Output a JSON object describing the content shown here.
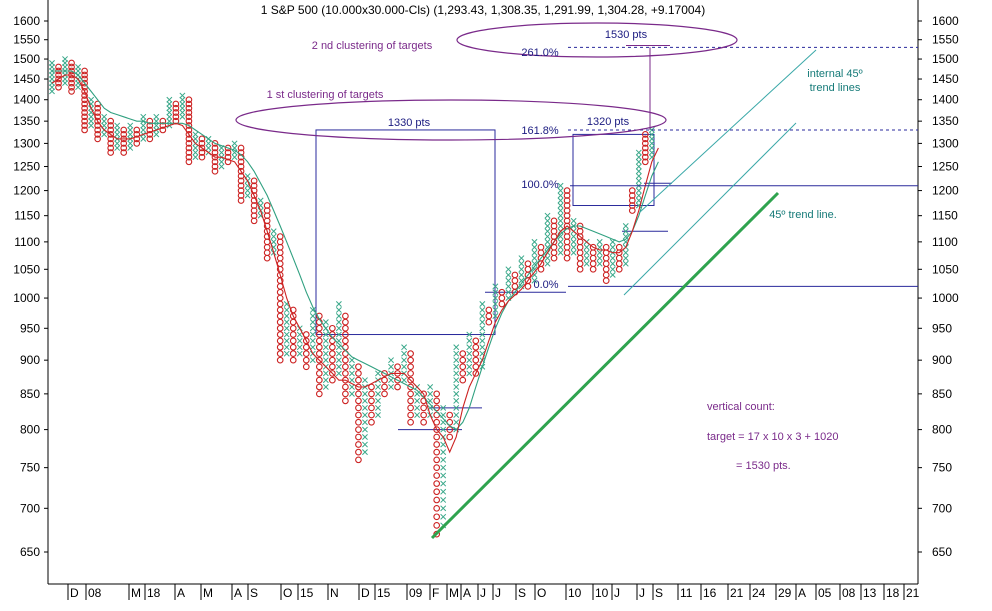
{
  "chart_data": {
    "type": "point-and-figure",
    "title": "1 S&P 500 (10.000x30.000-Cls) (1,293.43, 1,308.35, 1,291.99, 1,304.28, +9.17004)",
    "y_scale": "log",
    "ylim": [
      610,
      1640
    ],
    "y_ticks": [
      650,
      700,
      750,
      800,
      850,
      900,
      950,
      1000,
      1050,
      1100,
      1150,
      1200,
      1250,
      1300,
      1350,
      1400,
      1450,
      1500,
      1550,
      1600
    ],
    "x_labels": [
      "D",
      "08",
      "M",
      "18",
      "A",
      "M",
      "A",
      "S",
      "O",
      "15",
      "N",
      "D",
      "15",
      "09",
      "F",
      "M",
      "A",
      "J",
      "J",
      "S",
      "O",
      "10",
      "10",
      "J",
      "J",
      "S",
      "11",
      "16",
      "21",
      "24",
      "29",
      "A",
      "05",
      "08",
      "13",
      "18",
      "21"
    ],
    "columns": [
      {
        "t": "X",
        "lo": 1420,
        "hi": 1490
      },
      {
        "t": "O",
        "lo": 1430,
        "hi": 1480
      },
      {
        "t": "X",
        "lo": 1440,
        "hi": 1500
      },
      {
        "t": "O",
        "lo": 1420,
        "hi": 1490
      },
      {
        "t": "X",
        "lo": 1430,
        "hi": 1480
      },
      {
        "t": "O",
        "lo": 1330,
        "hi": 1470
      },
      {
        "t": "X",
        "lo": 1340,
        "hi": 1400
      },
      {
        "t": "O",
        "lo": 1310,
        "hi": 1390
      },
      {
        "t": "X",
        "lo": 1320,
        "hi": 1360
      },
      {
        "t": "O",
        "lo": 1280,
        "hi": 1350
      },
      {
        "t": "X",
        "lo": 1290,
        "hi": 1340
      },
      {
        "t": "O",
        "lo": 1280,
        "hi": 1330
      },
      {
        "t": "X",
        "lo": 1290,
        "hi": 1340
      },
      {
        "t": "O",
        "lo": 1300,
        "hi": 1330
      },
      {
        "t": "X",
        "lo": 1310,
        "hi": 1360
      },
      {
        "t": "O",
        "lo": 1310,
        "hi": 1350
      },
      {
        "t": "X",
        "lo": 1320,
        "hi": 1360
      },
      {
        "t": "O",
        "lo": 1330,
        "hi": 1350
      },
      {
        "t": "X",
        "lo": 1340,
        "hi": 1400
      },
      {
        "t": "O",
        "lo": 1350,
        "hi": 1390
      },
      {
        "t": "X",
        "lo": 1360,
        "hi": 1410
      },
      {
        "t": "O",
        "lo": 1260,
        "hi": 1400
      },
      {
        "t": "X",
        "lo": 1270,
        "hi": 1320
      },
      {
        "t": "O",
        "lo": 1270,
        "hi": 1310
      },
      {
        "t": "X",
        "lo": 1280,
        "hi": 1310
      },
      {
        "t": "O",
        "lo": 1240,
        "hi": 1300
      },
      {
        "t": "X",
        "lo": 1250,
        "hi": 1290
      },
      {
        "t": "O",
        "lo": 1260,
        "hi": 1290
      },
      {
        "t": "X",
        "lo": 1270,
        "hi": 1300
      },
      {
        "t": "O",
        "lo": 1180,
        "hi": 1290
      },
      {
        "t": "X",
        "lo": 1190,
        "hi": 1230
      },
      {
        "t": "O",
        "lo": 1140,
        "hi": 1220
      },
      {
        "t": "X",
        "lo": 1150,
        "hi": 1180
      },
      {
        "t": "O",
        "lo": 1070,
        "hi": 1170
      },
      {
        "t": "X",
        "lo": 1080,
        "hi": 1120
      },
      {
        "t": "O",
        "lo": 900,
        "hi": 1110
      },
      {
        "t": "X",
        "lo": 910,
        "hi": 990
      },
      {
        "t": "O",
        "lo": 900,
        "hi": 980
      },
      {
        "t": "X",
        "lo": 910,
        "hi": 950
      },
      {
        "t": "O",
        "lo": 890,
        "hi": 940
      },
      {
        "t": "X",
        "lo": 900,
        "hi": 980
      },
      {
        "t": "O",
        "lo": 850,
        "hi": 970
      },
      {
        "t": "X",
        "lo": 860,
        "hi": 960
      },
      {
        "t": "O",
        "lo": 870,
        "hi": 950
      },
      {
        "t": "X",
        "lo": 880,
        "hi": 990
      },
      {
        "t": "O",
        "lo": 840,
        "hi": 970
      },
      {
        "t": "X",
        "lo": 850,
        "hi": 900
      },
      {
        "t": "O",
        "lo": 760,
        "hi": 890
      },
      {
        "t": "X",
        "lo": 770,
        "hi": 870
      },
      {
        "t": "O",
        "lo": 810,
        "hi": 860
      },
      {
        "t": "X",
        "lo": 820,
        "hi": 880
      },
      {
        "t": "O",
        "lo": 850,
        "hi": 880
      },
      {
        "t": "X",
        "lo": 860,
        "hi": 900
      },
      {
        "t": "O",
        "lo": 860,
        "hi": 890
      },
      {
        "t": "X",
        "lo": 870,
        "hi": 920
      },
      {
        "t": "O",
        "lo": 810,
        "hi": 910
      },
      {
        "t": "X",
        "lo": 820,
        "hi": 860
      },
      {
        "t": "O",
        "lo": 810,
        "hi": 850
      },
      {
        "t": "X",
        "lo": 820,
        "hi": 860
      },
      {
        "t": "O",
        "lo": 670,
        "hi": 850
      },
      {
        "t": "X",
        "lo": 680,
        "hi": 830
      },
      {
        "t": "O",
        "lo": 790,
        "hi": 820
      },
      {
        "t": "X",
        "lo": 800,
        "hi": 920
      },
      {
        "t": "O",
        "lo": 870,
        "hi": 910
      },
      {
        "t": "X",
        "lo": 880,
        "hi": 940
      },
      {
        "t": "O",
        "lo": 880,
        "hi": 930
      },
      {
        "t": "X",
        "lo": 890,
        "hi": 990
      },
      {
        "t": "O",
        "lo": 960,
        "hi": 980
      },
      {
        "t": "X",
        "lo": 970,
        "hi": 1020
      },
      {
        "t": "O",
        "lo": 990,
        "hi": 1010
      },
      {
        "t": "X",
        "lo": 1000,
        "hi": 1050
      },
      {
        "t": "O",
        "lo": 1010,
        "hi": 1040
      },
      {
        "t": "X",
        "lo": 1020,
        "hi": 1070
      },
      {
        "t": "O",
        "lo": 1020,
        "hi": 1060
      },
      {
        "t": "X",
        "lo": 1030,
        "hi": 1100
      },
      {
        "t": "O",
        "lo": 1050,
        "hi": 1090
      },
      {
        "t": "X",
        "lo": 1060,
        "hi": 1150
      },
      {
        "t": "O",
        "lo": 1070,
        "hi": 1140
      },
      {
        "t": "X",
        "lo": 1080,
        "hi": 1210
      },
      {
        "t": "O",
        "lo": 1070,
        "hi": 1200
      },
      {
        "t": "X",
        "lo": 1080,
        "hi": 1140
      },
      {
        "t": "O",
        "lo": 1050,
        "hi": 1130
      },
      {
        "t": "X",
        "lo": 1060,
        "hi": 1100
      },
      {
        "t": "O",
        "lo": 1050,
        "hi": 1090
      },
      {
        "t": "X",
        "lo": 1060,
        "hi": 1100
      },
      {
        "t": "O",
        "lo": 1030,
        "hi": 1090
      },
      {
        "t": "X",
        "lo": 1040,
        "hi": 1100
      },
      {
        "t": "O",
        "lo": 1050,
        "hi": 1090
      },
      {
        "t": "X",
        "lo": 1060,
        "hi": 1130
      },
      {
        "t": "O",
        "lo": 1160,
        "hi": 1200
      },
      {
        "t": "X",
        "lo": 1170,
        "hi": 1280
      },
      {
        "t": "O",
        "lo": 1260,
        "hi": 1320
      },
      {
        "t": "X",
        "lo": 1270,
        "hi": 1330
      }
    ],
    "ma_red": [
      1440,
      1450,
      1460,
      1460,
      1450,
      1420,
      1380,
      1350,
      1330,
      1320,
      1310,
      1310,
      1310,
      1315,
      1320,
      1325,
      1330,
      1335,
      1340,
      1345,
      1340,
      1320,
      1300,
      1290,
      1280,
      1270,
      1270,
      1265,
      1260,
      1240,
      1220,
      1190,
      1160,
      1120,
      1080,
      1040,
      1000,
      970,
      950,
      930,
      910,
      900,
      890,
      880,
      870,
      870,
      865,
      860,
      860,
      865,
      870,
      875,
      880,
      880,
      880,
      870,
      860,
      850,
      820,
      800,
      790,
      770,
      790,
      830,
      860,
      880,
      900,
      930,
      960,
      980,
      995,
      1005,
      1015,
      1030,
      1045,
      1060,
      1080,
      1100,
      1120,
      1130,
      1120,
      1110,
      1100,
      1090,
      1085,
      1085,
      1080,
      1080,
      1090,
      1120,
      1160,
      1210,
      1260,
      1290
    ],
    "ma_green": [
      1470,
      1470,
      1470,
      1470,
      1460,
      1440,
      1420,
      1400,
      1380,
      1370,
      1365,
      1360,
      1355,
      1350,
      1350,
      1345,
      1345,
      1345,
      1345,
      1345,
      1345,
      1340,
      1330,
      1320,
      1310,
      1300,
      1295,
      1290,
      1285,
      1275,
      1260,
      1240,
      1215,
      1190,
      1160,
      1130,
      1100,
      1070,
      1040,
      1010,
      985,
      965,
      950,
      935,
      925,
      915,
      905,
      900,
      895,
      890,
      885,
      880,
      875,
      870,
      865,
      860,
      855,
      845,
      835,
      825,
      815,
      805,
      800,
      810,
      830,
      860,
      890,
      920,
      950,
      975,
      995,
      1010,
      1025,
      1040,
      1055,
      1070,
      1085,
      1100,
      1115,
      1125,
      1130,
      1130,
      1125,
      1120,
      1115,
      1110,
      1105,
      1100,
      1105,
      1120,
      1150,
      1190,
      1230,
      1260
    ]
  },
  "annotations": {
    "cluster2_label": "2 nd clustering of targets",
    "cluster1_label": "1 st clustering of targets",
    "target_1530": "1530 pts",
    "target_1330": "1330 pts",
    "target_1320": "1320 pts",
    "fib_261": "261.0%",
    "fib_1618": "161.8%",
    "fib_100": "100.0%",
    "fib_0": "0.0%",
    "internal_trend_1": "internal 45º",
    "internal_trend_2": "trend lines",
    "trend_45": "45º trend line.",
    "vertical_count_1": "vertical count:",
    "vertical_count_2": "target = 17 x 10 x 3 + 1020",
    "vertical_count_3": "= 1530 pts."
  },
  "colors": {
    "x_marker": "#3aa88a",
    "o_marker": "#cc2222",
    "ma_red": "#cc2222",
    "ma_green": "#30a080",
    "target_box": "#2a2a9c",
    "cluster_ellipse": "#7a2a8a",
    "purple_text": "#7a2a8a",
    "navy_text": "#1a1a80",
    "teal_text": "#157a78",
    "trend_green": "#2fa34f",
    "trend_teal": "#3aa8a8"
  }
}
